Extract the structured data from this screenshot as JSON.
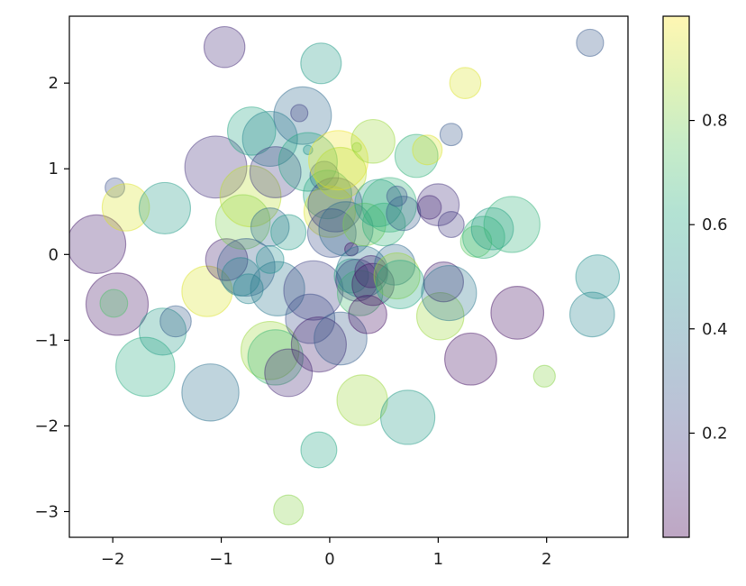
{
  "chart_data": {
    "type": "scatter",
    "title": "",
    "xlabel": "",
    "ylabel": "",
    "xlim": [
      -2.4,
      2.75
    ],
    "ylim": [
      -3.3,
      2.78
    ],
    "x_ticks": [
      -2,
      -1,
      0,
      1,
      2
    ],
    "x_tick_labels": [
      "−2",
      "−1",
      "0",
      "1",
      "2"
    ],
    "y_ticks": [
      -3,
      -2,
      -1,
      0,
      1,
      2
    ],
    "y_tick_labels": [
      "−3",
      "−2",
      "−1",
      "0",
      "1",
      "2"
    ],
    "grid": false,
    "alpha": 0.3,
    "colormap": "viridis",
    "colorbar": {
      "range": [
        0.0,
        1.0
      ],
      "ticks": [
        0.2,
        0.4,
        0.6,
        0.8
      ],
      "tick_labels": [
        "0.2",
        "0.4",
        "0.6",
        "0.8"
      ]
    },
    "points": [
      {
        "x": -2.15,
        "y": 0.12,
        "size": 1170,
        "color": 0.08
      },
      {
        "x": -1.96,
        "y": -0.58,
        "size": 1320,
        "color": 0.06
      },
      {
        "x": -1.98,
        "y": 0.78,
        "size": 130,
        "color": 0.25
      },
      {
        "x": -1.88,
        "y": 0.55,
        "size": 760,
        "color": 0.95
      },
      {
        "x": -1.99,
        "y": -0.57,
        "size": 260,
        "color": 0.72
      },
      {
        "x": -1.7,
        "y": -1.31,
        "size": 1180,
        "color": 0.62
      },
      {
        "x": -1.54,
        "y": -0.9,
        "size": 750,
        "color": 0.55
      },
      {
        "x": -1.42,
        "y": -0.78,
        "size": 330,
        "color": 0.3
      },
      {
        "x": -1.52,
        "y": 0.54,
        "size": 900,
        "color": 0.55
      },
      {
        "x": -1.1,
        "y": -1.61,
        "size": 1110,
        "color": 0.38
      },
      {
        "x": -1.13,
        "y": -0.43,
        "size": 870,
        "color": 0.95
      },
      {
        "x": -1.05,
        "y": 1.02,
        "size": 1310,
        "color": 0.15
      },
      {
        "x": -0.97,
        "y": 2.42,
        "size": 570,
        "color": 0.13
      },
      {
        "x": -0.95,
        "y": -0.06,
        "size": 600,
        "color": 0.1
      },
      {
        "x": -0.8,
        "y": 0.38,
        "size": 1010,
        "color": 0.8
      },
      {
        "x": -0.77,
        "y": -0.15,
        "size": 1130,
        "color": 0.3
      },
      {
        "x": -0.82,
        "y": -0.26,
        "size": 500,
        "color": 0.45
      },
      {
        "x": -0.73,
        "y": 0.68,
        "size": 1270,
        "color": 0.9
      },
      {
        "x": -0.72,
        "y": 1.44,
        "size": 790,
        "color": 0.6
      },
      {
        "x": -0.75,
        "y": -0.4,
        "size": 300,
        "color": 0.45
      },
      {
        "x": -0.55,
        "y": 1.35,
        "size": 1030,
        "color": 0.45
      },
      {
        "x": -0.5,
        "y": 0.96,
        "size": 890,
        "color": 0.18
      },
      {
        "x": -0.48,
        "y": -0.4,
        "size": 1000,
        "color": 0.4
      },
      {
        "x": -0.55,
        "y": 0.32,
        "size": 500,
        "color": 0.35
      },
      {
        "x": -0.55,
        "y": -0.06,
        "size": 260,
        "color": 0.5
      },
      {
        "x": -0.55,
        "y": -1.12,
        "size": 1150,
        "color": 0.85
      },
      {
        "x": -0.5,
        "y": -1.2,
        "size": 1040,
        "color": 0.68
      },
      {
        "x": -0.38,
        "y": -1.38,
        "size": 770,
        "color": 0.12
      },
      {
        "x": -0.38,
        "y": 0.26,
        "size": 420,
        "color": 0.55
      },
      {
        "x": -0.38,
        "y": -2.98,
        "size": 300,
        "color": 0.82
      },
      {
        "x": -0.25,
        "y": 1.62,
        "size": 1130,
        "color": 0.35
      },
      {
        "x": -0.28,
        "y": 1.65,
        "size": 100,
        "color": 0.2
      },
      {
        "x": -0.2,
        "y": 1.08,
        "size": 1170,
        "color": 0.6
      },
      {
        "x": -0.2,
        "y": 1.22,
        "size": 30,
        "color": 0.5
      },
      {
        "x": -0.18,
        "y": -0.75,
        "size": 830,
        "color": 0.25
      },
      {
        "x": -0.15,
        "y": -0.42,
        "size": 1200,
        "color": 0.2
      },
      {
        "x": -0.08,
        "y": 2.23,
        "size": 560,
        "color": 0.55
      },
      {
        "x": -0.1,
        "y": -2.28,
        "size": 440,
        "color": 0.6
      },
      {
        "x": -0.1,
        "y": -1.05,
        "size": 1030,
        "color": 0.1
      },
      {
        "x": -0.05,
        "y": 0.92,
        "size": 280,
        "color": 0.3
      },
      {
        "x": -0.02,
        "y": 0.7,
        "size": 800,
        "color": 0.6
      },
      {
        "x": 0.0,
        "y": 0.5,
        "size": 900,
        "color": 0.95
      },
      {
        "x": 0.02,
        "y": 0.25,
        "size": 800,
        "color": 0.25
      },
      {
        "x": 0.05,
        "y": 0.58,
        "size": 1000,
        "color": 0.2
      },
      {
        "x": 0.08,
        "y": 1.1,
        "size": 1200,
        "color": 0.98
      },
      {
        "x": 0.1,
        "y": 0.95,
        "size": 900,
        "color": 0.9
      },
      {
        "x": 0.1,
        "y": -0.98,
        "size": 950,
        "color": 0.3
      },
      {
        "x": 0.15,
        "y": 0.3,
        "size": 1000,
        "color": 0.35
      },
      {
        "x": 0.2,
        "y": -0.25,
        "size": 400,
        "color": 0.6
      },
      {
        "x": 0.2,
        "y": 0.06,
        "size": 60,
        "color": 0.05
      },
      {
        "x": 0.25,
        "y": 1.25,
        "size": 30,
        "color": 0.85
      },
      {
        "x": 0.25,
        "y": -0.3,
        "size": 600,
        "color": 0.15
      },
      {
        "x": 0.28,
        "y": -0.45,
        "size": 700,
        "color": 0.7
      },
      {
        "x": 0.3,
        "y": -0.2,
        "size": 900,
        "color": 0.4
      },
      {
        "x": 0.3,
        "y": -1.7,
        "size": 870,
        "color": 0.85
      },
      {
        "x": 0.32,
        "y": 0.35,
        "size": 620,
        "color": 0.8
      },
      {
        "x": 0.35,
        "y": -0.7,
        "size": 500,
        "color": 0.05
      },
      {
        "x": 0.38,
        "y": -0.2,
        "size": 350,
        "color": 0.1
      },
      {
        "x": 0.4,
        "y": -0.35,
        "size": 600,
        "color": 0.05
      },
      {
        "x": 0.4,
        "y": 1.32,
        "size": 650,
        "color": 0.85
      },
      {
        "x": 0.45,
        "y": 0.6,
        "size": 760,
        "color": 0.55
      },
      {
        "x": 0.5,
        "y": 0.35,
        "size": 620,
        "color": 0.65
      },
      {
        "x": 0.55,
        "y": 0.58,
        "size": 1010,
        "color": 0.65
      },
      {
        "x": 0.6,
        "y": -0.12,
        "size": 560,
        "color": 0.35
      },
      {
        "x": 0.62,
        "y": -0.25,
        "size": 720,
        "color": 0.85
      },
      {
        "x": 0.65,
        "y": -0.35,
        "size": 800,
        "color": 0.6
      },
      {
        "x": 0.62,
        "y": 0.68,
        "size": 140,
        "color": 0.25
      },
      {
        "x": 0.68,
        "y": 0.48,
        "size": 400,
        "color": 0.3
      },
      {
        "x": 0.72,
        "y": -1.9,
        "size": 1000,
        "color": 0.55
      },
      {
        "x": 0.8,
        "y": 1.15,
        "size": 630,
        "color": 0.65
      },
      {
        "x": 0.9,
        "y": 1.22,
        "size": 300,
        "color": 0.95
      },
      {
        "x": 0.92,
        "y": 0.55,
        "size": 190,
        "color": 0.1
      },
      {
        "x": 1.0,
        "y": 0.58,
        "size": 600,
        "color": 0.15
      },
      {
        "x": 1.02,
        "y": -0.72,
        "size": 760,
        "color": 0.85
      },
      {
        "x": 1.05,
        "y": -0.32,
        "size": 540,
        "color": 0.1
      },
      {
        "x": 1.1,
        "y": -0.45,
        "size": 1030,
        "color": 0.4
      },
      {
        "x": 1.12,
        "y": 0.35,
        "size": 230,
        "color": 0.18
      },
      {
        "x": 1.12,
        "y": 1.4,
        "size": 170,
        "color": 0.28
      },
      {
        "x": 1.25,
        "y": 2.0,
        "size": 330,
        "color": 0.95
      },
      {
        "x": 1.3,
        "y": -1.22,
        "size": 920,
        "color": 0.05
      },
      {
        "x": 1.35,
        "y": 0.15,
        "size": 330,
        "color": 0.75
      },
      {
        "x": 1.42,
        "y": 0.2,
        "size": 600,
        "color": 0.65
      },
      {
        "x": 1.5,
        "y": 0.3,
        "size": 600,
        "color": 0.55
      },
      {
        "x": 1.68,
        "y": 0.35,
        "size": 1070,
        "color": 0.65
      },
      {
        "x": 1.73,
        "y": -0.68,
        "size": 950,
        "color": 0.05
      },
      {
        "x": 1.98,
        "y": -1.42,
        "size": 160,
        "color": 0.82
      },
      {
        "x": 2.4,
        "y": 2.47,
        "size": 250,
        "color": 0.28
      },
      {
        "x": 2.42,
        "y": -0.7,
        "size": 680,
        "color": 0.45
      },
      {
        "x": 2.47,
        "y": -0.26,
        "size": 650,
        "color": 0.5
      }
    ]
  }
}
